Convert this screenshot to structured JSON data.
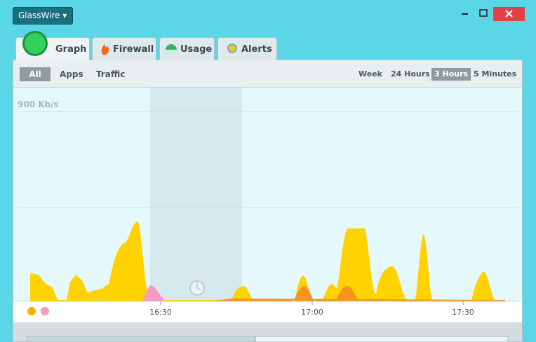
{
  "window": {
    "app_menu": "GlassWire"
  },
  "tabs": [
    {
      "label": "Graph"
    },
    {
      "label": "Firewall"
    },
    {
      "label": "Usage"
    },
    {
      "label": "Alerts"
    }
  ],
  "filters": [
    "All",
    "Apps",
    "Traffic"
  ],
  "ranges": [
    "Week",
    "24 Hours",
    "3 Hours",
    "5 Minutes"
  ],
  "graph": {
    "scale_label": "900 Kb/s",
    "time_labels": [
      "16:30",
      "17:00",
      "17:30"
    ]
  }
}
